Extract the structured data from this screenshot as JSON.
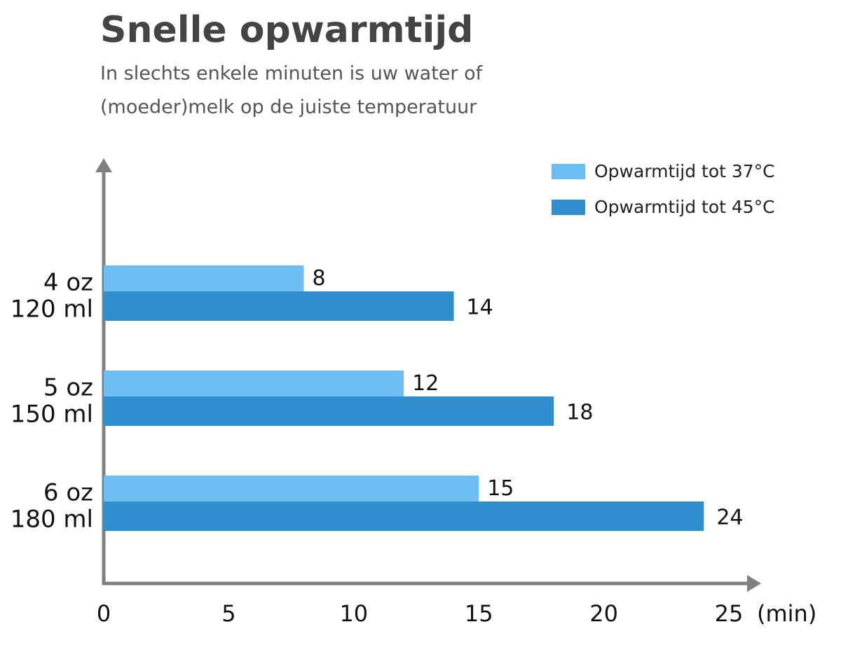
{
  "chart_data": {
    "type": "bar",
    "orientation": "horizontal",
    "title": "Snelle opwarmtijd",
    "subtitle": [
      "In slechts enkele minuten is uw water of",
      "(moeder)melk op de juiste temperatuur"
    ],
    "categories": [
      [
        "4 oz",
        "120 ml"
      ],
      [
        "5 oz",
        "150 ml"
      ],
      [
        "6 oz",
        "180 ml"
      ]
    ],
    "series": [
      {
        "name": "Opwarmtijd tot 37°C",
        "color": "#6bbdf2",
        "values": [
          8,
          12,
          15
        ]
      },
      {
        "name": "Opwarmtijd tot 45°C",
        "color": "#2f8fcc",
        "values": [
          14,
          18,
          24
        ]
      }
    ],
    "xlabel": "(min)",
    "xlim": [
      0,
      25
    ],
    "xticks": [
      0,
      5,
      10,
      15,
      20,
      25
    ],
    "legend": "top-right",
    "grid": false
  }
}
